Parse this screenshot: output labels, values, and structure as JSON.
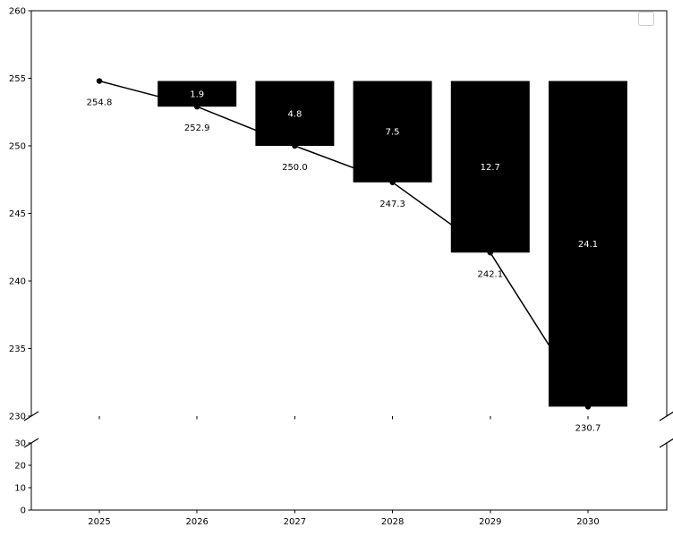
{
  "figure": {
    "background_color": "#ffffff",
    "legend": {
      "visible": true,
      "empty": true,
      "position": "upper-right",
      "entries": []
    }
  },
  "chart_data": {
    "type": "bar",
    "overlay": "line",
    "title": "",
    "xlabel": "",
    "ylabel": "",
    "grid": false,
    "legend_position": "upper right",
    "axis_color": "#000000",
    "x": [
      2025,
      2026,
      2027,
      2028,
      2029,
      2030
    ],
    "x_tick_labels": [
      "2025",
      "2026",
      "2027",
      "2028",
      "2029",
      "2030"
    ],
    "line_series": {
      "name": "level-by-year",
      "color": "#000000",
      "marker": "circle",
      "values": [
        254.8,
        252.9,
        250.0,
        247.3,
        242.1,
        230.7
      ],
      "point_labels": [
        "254.8",
        "252.9",
        "250.0",
        "247.3",
        "242.1",
        "230.7"
      ],
      "label_color": "#000000"
    },
    "bar_series": {
      "name": "cumulative-decline-from-2025",
      "color": "#000000",
      "bar_top": 254.8,
      "x": [
        2026,
        2027,
        2028,
        2029,
        2030
      ],
      "bottoms": [
        252.9,
        250.0,
        247.3,
        242.1,
        230.7
      ],
      "labels": [
        "1.9",
        "4.8",
        "7.5",
        "12.7",
        "24.1"
      ],
      "label_color": "#ffffff"
    },
    "y_axis": {
      "broken": true,
      "upper": {
        "min": 230,
        "max": 260,
        "ticks": [
          230,
          235,
          240,
          245,
          250,
          255,
          260
        ],
        "tick_labels": [
          "230",
          "235",
          "240",
          "245",
          "250",
          "255",
          "260"
        ]
      },
      "lower": {
        "min": 0,
        "max": 30,
        "ticks": [
          0,
          10,
          20,
          30
        ],
        "tick_labels": [
          "0",
          "10",
          "20",
          "30"
        ]
      }
    }
  }
}
